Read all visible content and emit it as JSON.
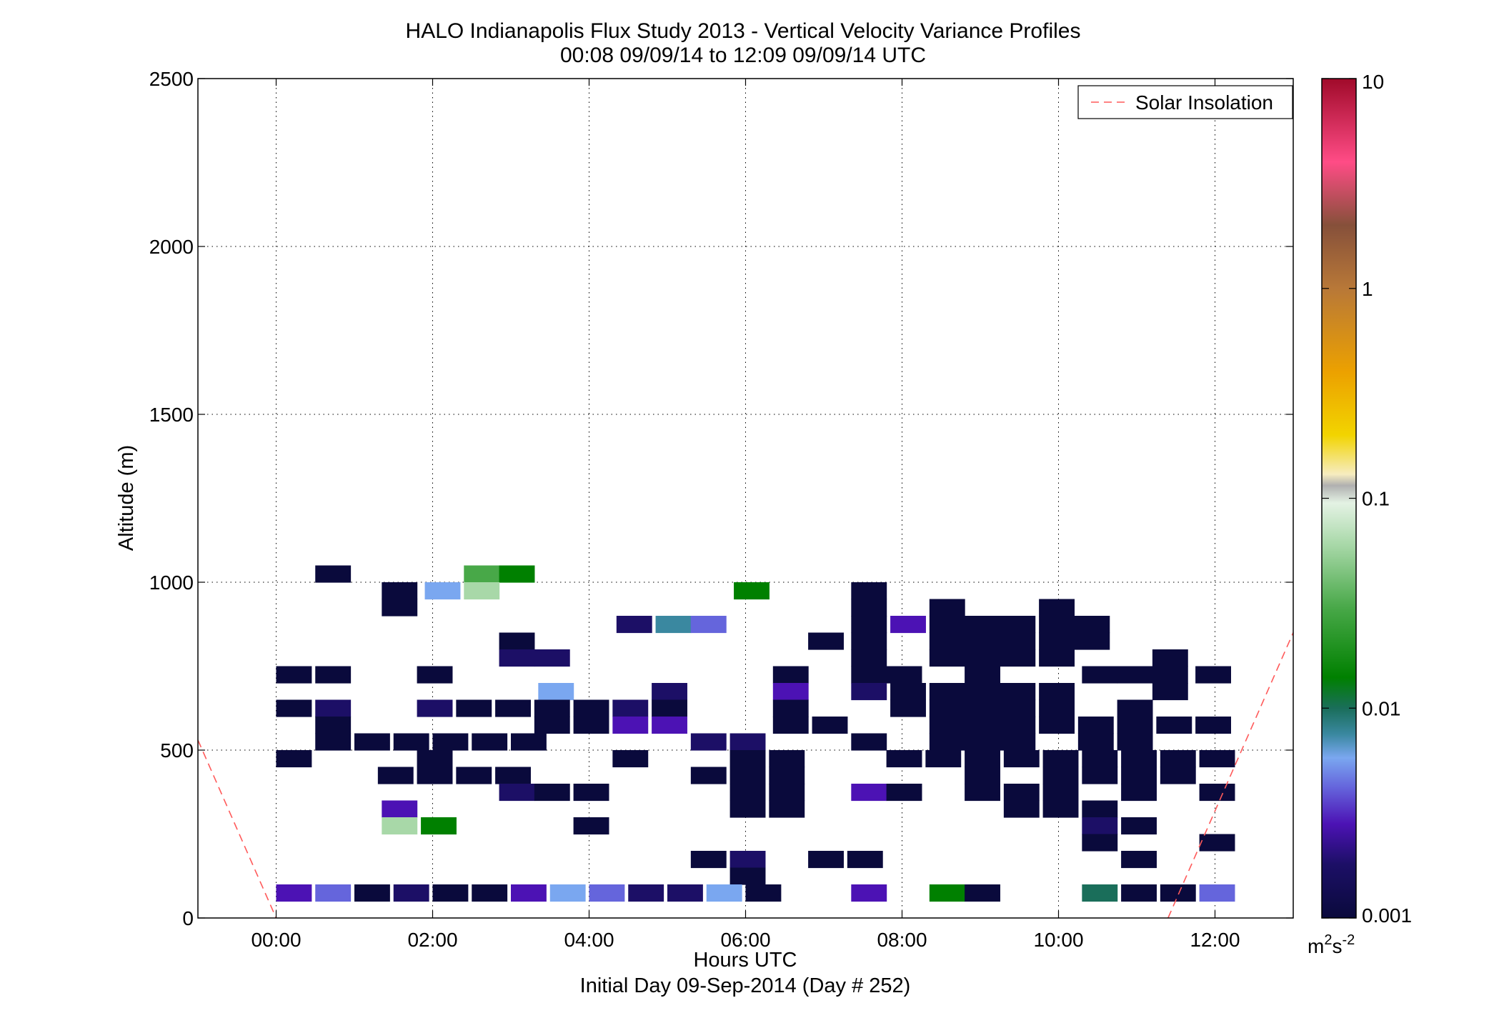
{
  "chart_data": {
    "type": "heatmap",
    "title": "HALO Indianapolis Flux Study 2013 - Vertical Velocity Variance Profiles",
    "subtitle": "00:08 09/09/14 to 12:09 09/09/14  UTC",
    "xlabel": "Hours UTC",
    "xlabel2": "Initial Day 09-Sep-2014 (Day # 252)",
    "ylabel": "Altitude (m)",
    "xlim": [
      -1.0,
      13.0
    ],
    "ylim": [
      0,
      2500
    ],
    "grid": true,
    "x_ticks": [
      {
        "value": 0,
        "label": "00:00"
      },
      {
        "value": 2,
        "label": "02:00"
      },
      {
        "value": 4,
        "label": "04:00"
      },
      {
        "value": 6,
        "label": "06:00"
      },
      {
        "value": 8,
        "label": "08:00"
      },
      {
        "value": 10,
        "label": "10:00"
      },
      {
        "value": 12,
        "label": "12:00"
      }
    ],
    "y_ticks": [
      {
        "value": 0,
        "label": "0"
      },
      {
        "value": 500,
        "label": "500"
      },
      {
        "value": 1000,
        "label": "1000"
      },
      {
        "value": 1500,
        "label": "1500"
      },
      {
        "value": 2000,
        "label": "2000"
      },
      {
        "value": 2500,
        "label": "2500"
      }
    ],
    "legend": {
      "placement": "top-right",
      "entries": [
        {
          "name": "Solar Insolation",
          "color": "#ff5a5a",
          "style": "dashed"
        }
      ]
    },
    "colorbar": {
      "scale": "log",
      "range": [
        0.001,
        10
      ],
      "unit_base": "m",
      "unit_sup1": "2",
      "unit_mid": "s",
      "unit_sup2": "-2",
      "ticks": [
        {
          "value": 0.001,
          "label": "0.001"
        },
        {
          "value": 0.01,
          "label": "0.01"
        },
        {
          "value": 0.1,
          "label": "0.1"
        },
        {
          "value": 1,
          "label": "1"
        },
        {
          "value": 10,
          "label": "10"
        }
      ],
      "stops": [
        {
          "value": 0.001,
          "color": "#0a0a3c"
        },
        {
          "value": 0.0018,
          "color": "#1c0f66"
        },
        {
          "value": 0.0028,
          "color": "#4c12b4"
        },
        {
          "value": 0.0042,
          "color": "#6565dc"
        },
        {
          "value": 0.0058,
          "color": "#7aa7f0"
        },
        {
          "value": 0.0075,
          "color": "#3a88a0"
        },
        {
          "value": 0.01,
          "color": "#1a6e5a"
        },
        {
          "value": 0.014,
          "color": "#008000"
        },
        {
          "value": 0.03,
          "color": "#48a848"
        },
        {
          "value": 0.06,
          "color": "#a8d8a8"
        },
        {
          "value": 0.095,
          "color": "#e4f2e4"
        },
        {
          "value": 0.115,
          "color": "#b0b0b0"
        },
        {
          "value": 0.13,
          "color": "#f6ecc0"
        },
        {
          "value": 0.2,
          "color": "#f2d400"
        },
        {
          "value": 0.4,
          "color": "#eca100"
        },
        {
          "value": 1,
          "color": "#b87838"
        },
        {
          "value": 2,
          "color": "#86503a"
        },
        {
          "value": 4,
          "color": "#ff4c86"
        },
        {
          "value": 10,
          "color": "#a00a2a"
        }
      ]
    },
    "bin": {
      "time_width_h": 0.45,
      "alt_height_m": 50
    },
    "solar_insolation": [
      {
        "x": -1.0,
        "y": 530
      },
      {
        "x": 0.0,
        "y": 0
      },
      {
        "x": 11.4,
        "y": 0
      },
      {
        "x": 13.0,
        "y": 850
      }
    ],
    "cells": [
      [
        0.5,
        1025,
        0.001
      ],
      [
        2.4,
        1025,
        0.03
      ],
      [
        2.85,
        1025,
        0.014
      ],
      [
        1.35,
        975,
        0.001
      ],
      [
        1.9,
        975,
        0.0058
      ],
      [
        2.4,
        975,
        0.06
      ],
      [
        5.85,
        975,
        0.014
      ],
      [
        7.35,
        975,
        0.001
      ],
      [
        1.35,
        925,
        0.001
      ],
      [
        7.35,
        925,
        0.001
      ],
      [
        8.35,
        925,
        0.001
      ],
      [
        9.75,
        925,
        0.001
      ],
      [
        4.35,
        875,
        0.0018
      ],
      [
        4.85,
        875,
        0.0075
      ],
      [
        5.3,
        875,
        0.0042
      ],
      [
        7.35,
        875,
        0.001
      ],
      [
        7.85,
        875,
        0.0028
      ],
      [
        8.35,
        875,
        0.001
      ],
      [
        8.8,
        875,
        0.001
      ],
      [
        9.25,
        875,
        0.001
      ],
      [
        9.75,
        875,
        0.001
      ],
      [
        10.2,
        875,
        0.001
      ],
      [
        2.85,
        825,
        0.001
      ],
      [
        6.8,
        825,
        0.001
      ],
      [
        7.35,
        825,
        0.001
      ],
      [
        8.35,
        825,
        0.001
      ],
      [
        8.8,
        825,
        0.001
      ],
      [
        9.25,
        825,
        0.001
      ],
      [
        9.75,
        825,
        0.001
      ],
      [
        10.2,
        825,
        0.001
      ],
      [
        2.85,
        775,
        0.0018
      ],
      [
        3.3,
        775,
        0.0018
      ],
      [
        7.35,
        775,
        0.001
      ],
      [
        8.35,
        775,
        0.001
      ],
      [
        8.8,
        775,
        0.001
      ],
      [
        9.25,
        775,
        0.001
      ],
      [
        9.75,
        775,
        0.001
      ],
      [
        11.2,
        775,
        0.001
      ],
      [
        0.0,
        725,
        0.001
      ],
      [
        0.5,
        725,
        0.001
      ],
      [
        1.8,
        725,
        0.001
      ],
      [
        6.35,
        725,
        0.001
      ],
      [
        7.35,
        725,
        0.001
      ],
      [
        7.8,
        725,
        0.001
      ],
      [
        8.8,
        725,
        0.001
      ],
      [
        10.3,
        725,
        0.001
      ],
      [
        10.75,
        725,
        0.001
      ],
      [
        11.2,
        725,
        0.001
      ],
      [
        11.75,
        725,
        0.001
      ],
      [
        3.35,
        675,
        0.0058
      ],
      [
        4.8,
        675,
        0.0018
      ],
      [
        6.35,
        675,
        0.0028
      ],
      [
        7.35,
        675,
        0.0018
      ],
      [
        7.85,
        675,
        0.001
      ],
      [
        8.35,
        675,
        0.001
      ],
      [
        8.8,
        675,
        0.001
      ],
      [
        9.25,
        675,
        0.001
      ],
      [
        9.75,
        675,
        0.001
      ],
      [
        11.2,
        675,
        0.001
      ],
      [
        0.0,
        625,
        0.001
      ],
      [
        0.5,
        625,
        0.0018
      ],
      [
        1.8,
        625,
        0.0018
      ],
      [
        2.3,
        625,
        0.001
      ],
      [
        2.8,
        625,
        0.001
      ],
      [
        3.3,
        625,
        0.001
      ],
      [
        3.8,
        625,
        0.001
      ],
      [
        4.3,
        625,
        0.0018
      ],
      [
        4.8,
        625,
        0.001
      ],
      [
        6.35,
        625,
        0.001
      ],
      [
        7.85,
        625,
        0.001
      ],
      [
        8.35,
        625,
        0.001
      ],
      [
        8.8,
        625,
        0.001
      ],
      [
        9.25,
        625,
        0.001
      ],
      [
        9.75,
        625,
        0.001
      ],
      [
        10.75,
        625,
        0.001
      ],
      [
        0.5,
        575,
        0.001
      ],
      [
        3.3,
        575,
        0.001
      ],
      [
        3.8,
        575,
        0.001
      ],
      [
        4.3,
        575,
        0.0028
      ],
      [
        4.8,
        575,
        0.0028
      ],
      [
        6.35,
        575,
        0.001
      ],
      [
        6.85,
        575,
        0.001
      ],
      [
        8.35,
        575,
        0.001
      ],
      [
        8.8,
        575,
        0.001
      ],
      [
        9.25,
        575,
        0.001
      ],
      [
        9.75,
        575,
        0.001
      ],
      [
        10.25,
        575,
        0.001
      ],
      [
        10.75,
        575,
        0.001
      ],
      [
        11.25,
        575,
        0.001
      ],
      [
        11.75,
        575,
        0.001
      ],
      [
        0.5,
        525,
        0.001
      ],
      [
        1.0,
        525,
        0.001
      ],
      [
        1.5,
        525,
        0.001
      ],
      [
        2.0,
        525,
        0.001
      ],
      [
        2.5,
        525,
        0.001
      ],
      [
        3.0,
        525,
        0.001
      ],
      [
        5.3,
        525,
        0.0018
      ],
      [
        5.8,
        525,
        0.0018
      ],
      [
        7.35,
        525,
        0.001
      ],
      [
        8.35,
        525,
        0.001
      ],
      [
        8.8,
        525,
        0.001
      ],
      [
        9.25,
        525,
        0.001
      ],
      [
        10.25,
        525,
        0.001
      ],
      [
        10.75,
        525,
        0.001
      ],
      [
        0.0,
        475,
        0.001
      ],
      [
        1.8,
        475,
        0.001
      ],
      [
        4.3,
        475,
        0.001
      ],
      [
        5.8,
        475,
        0.001
      ],
      [
        6.3,
        475,
        0.001
      ],
      [
        7.8,
        475,
        0.001
      ],
      [
        8.3,
        475,
        0.001
      ],
      [
        8.8,
        475,
        0.001
      ],
      [
        9.3,
        475,
        0.001
      ],
      [
        9.8,
        475,
        0.001
      ],
      [
        10.3,
        475,
        0.001
      ],
      [
        10.8,
        475,
        0.001
      ],
      [
        11.3,
        475,
        0.001
      ],
      [
        11.8,
        475,
        0.001
      ],
      [
        1.3,
        425,
        0.001
      ],
      [
        1.8,
        425,
        0.001
      ],
      [
        2.3,
        425,
        0.001
      ],
      [
        2.8,
        425,
        0.001
      ],
      [
        5.3,
        425,
        0.001
      ],
      [
        5.8,
        425,
        0.001
      ],
      [
        6.3,
        425,
        0.001
      ],
      [
        8.8,
        425,
        0.001
      ],
      [
        9.8,
        425,
        0.001
      ],
      [
        10.3,
        425,
        0.001
      ],
      [
        10.8,
        425,
        0.001
      ],
      [
        11.3,
        425,
        0.001
      ],
      [
        2.85,
        375,
        0.0018
      ],
      [
        3.3,
        375,
        0.001
      ],
      [
        3.8,
        375,
        0.001
      ],
      [
        5.8,
        375,
        0.001
      ],
      [
        6.3,
        375,
        0.001
      ],
      [
        7.35,
        375,
        0.0028
      ],
      [
        7.8,
        375,
        0.001
      ],
      [
        8.8,
        375,
        0.001
      ],
      [
        9.3,
        375,
        0.001
      ],
      [
        9.8,
        375,
        0.001
      ],
      [
        10.8,
        375,
        0.001
      ],
      [
        11.8,
        375,
        0.001
      ],
      [
        1.35,
        325,
        0.0028
      ],
      [
        5.8,
        325,
        0.001
      ],
      [
        6.3,
        325,
        0.001
      ],
      [
        9.3,
        325,
        0.001
      ],
      [
        9.8,
        325,
        0.001
      ],
      [
        10.3,
        325,
        0.001
      ],
      [
        1.35,
        275,
        0.06
      ],
      [
        1.85,
        275,
        0.014
      ],
      [
        3.8,
        275,
        0.001
      ],
      [
        10.3,
        275,
        0.0018
      ],
      [
        10.8,
        275,
        0.001
      ],
      [
        10.3,
        225,
        0.001
      ],
      [
        11.8,
        225,
        0.001
      ],
      [
        5.3,
        175,
        0.001
      ],
      [
        5.8,
        175,
        0.0018
      ],
      [
        6.8,
        175,
        0.001
      ],
      [
        7.3,
        175,
        0.001
      ],
      [
        10.8,
        175,
        0.001
      ],
      [
        5.8,
        125,
        0.001
      ],
      [
        0.0,
        75,
        0.0028
      ],
      [
        0.5,
        75,
        0.0042
      ],
      [
        1.0,
        75,
        0.001
      ],
      [
        1.5,
        75,
        0.0018
      ],
      [
        2.0,
        75,
        0.001
      ],
      [
        2.5,
        75,
        0.001
      ],
      [
        3.0,
        75,
        0.0028
      ],
      [
        3.5,
        75,
        0.0058
      ],
      [
        4.0,
        75,
        0.0042
      ],
      [
        4.5,
        75,
        0.0018
      ],
      [
        5.0,
        75,
        0.0018
      ],
      [
        5.5,
        75,
        0.0058
      ],
      [
        6.0,
        75,
        0.001
      ],
      [
        7.35,
        75,
        0.0028
      ],
      [
        8.35,
        75,
        0.014
      ],
      [
        8.8,
        75,
        0.001
      ],
      [
        10.3,
        75,
        0.01
      ],
      [
        10.8,
        75,
        0.001
      ],
      [
        11.3,
        75,
        0.001
      ],
      [
        11.8,
        75,
        0.0042
      ]
    ]
  }
}
